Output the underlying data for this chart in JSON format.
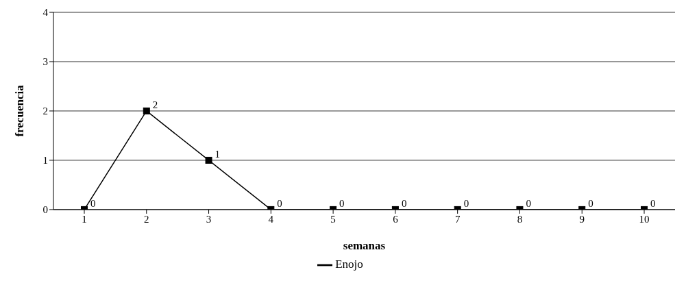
{
  "chart_data": {
    "type": "line",
    "xlabel": "semanas",
    "ylabel": "frecuencia",
    "categories": [
      "1",
      "2",
      "3",
      "4",
      "5",
      "6",
      "7",
      "8",
      "9",
      "10"
    ],
    "series": [
      {
        "name": "Enojo",
        "color": "#000000",
        "values": [
          0,
          2,
          1,
          0,
          0,
          0,
          0,
          0,
          0,
          0
        ]
      }
    ],
    "ylim": [
      0,
      4
    ],
    "yticks": [
      0,
      1,
      2,
      3,
      4
    ],
    "grid": "y",
    "legend": "bottom",
    "marker": "square",
    "line_style": "solid",
    "data_labels": true
  }
}
